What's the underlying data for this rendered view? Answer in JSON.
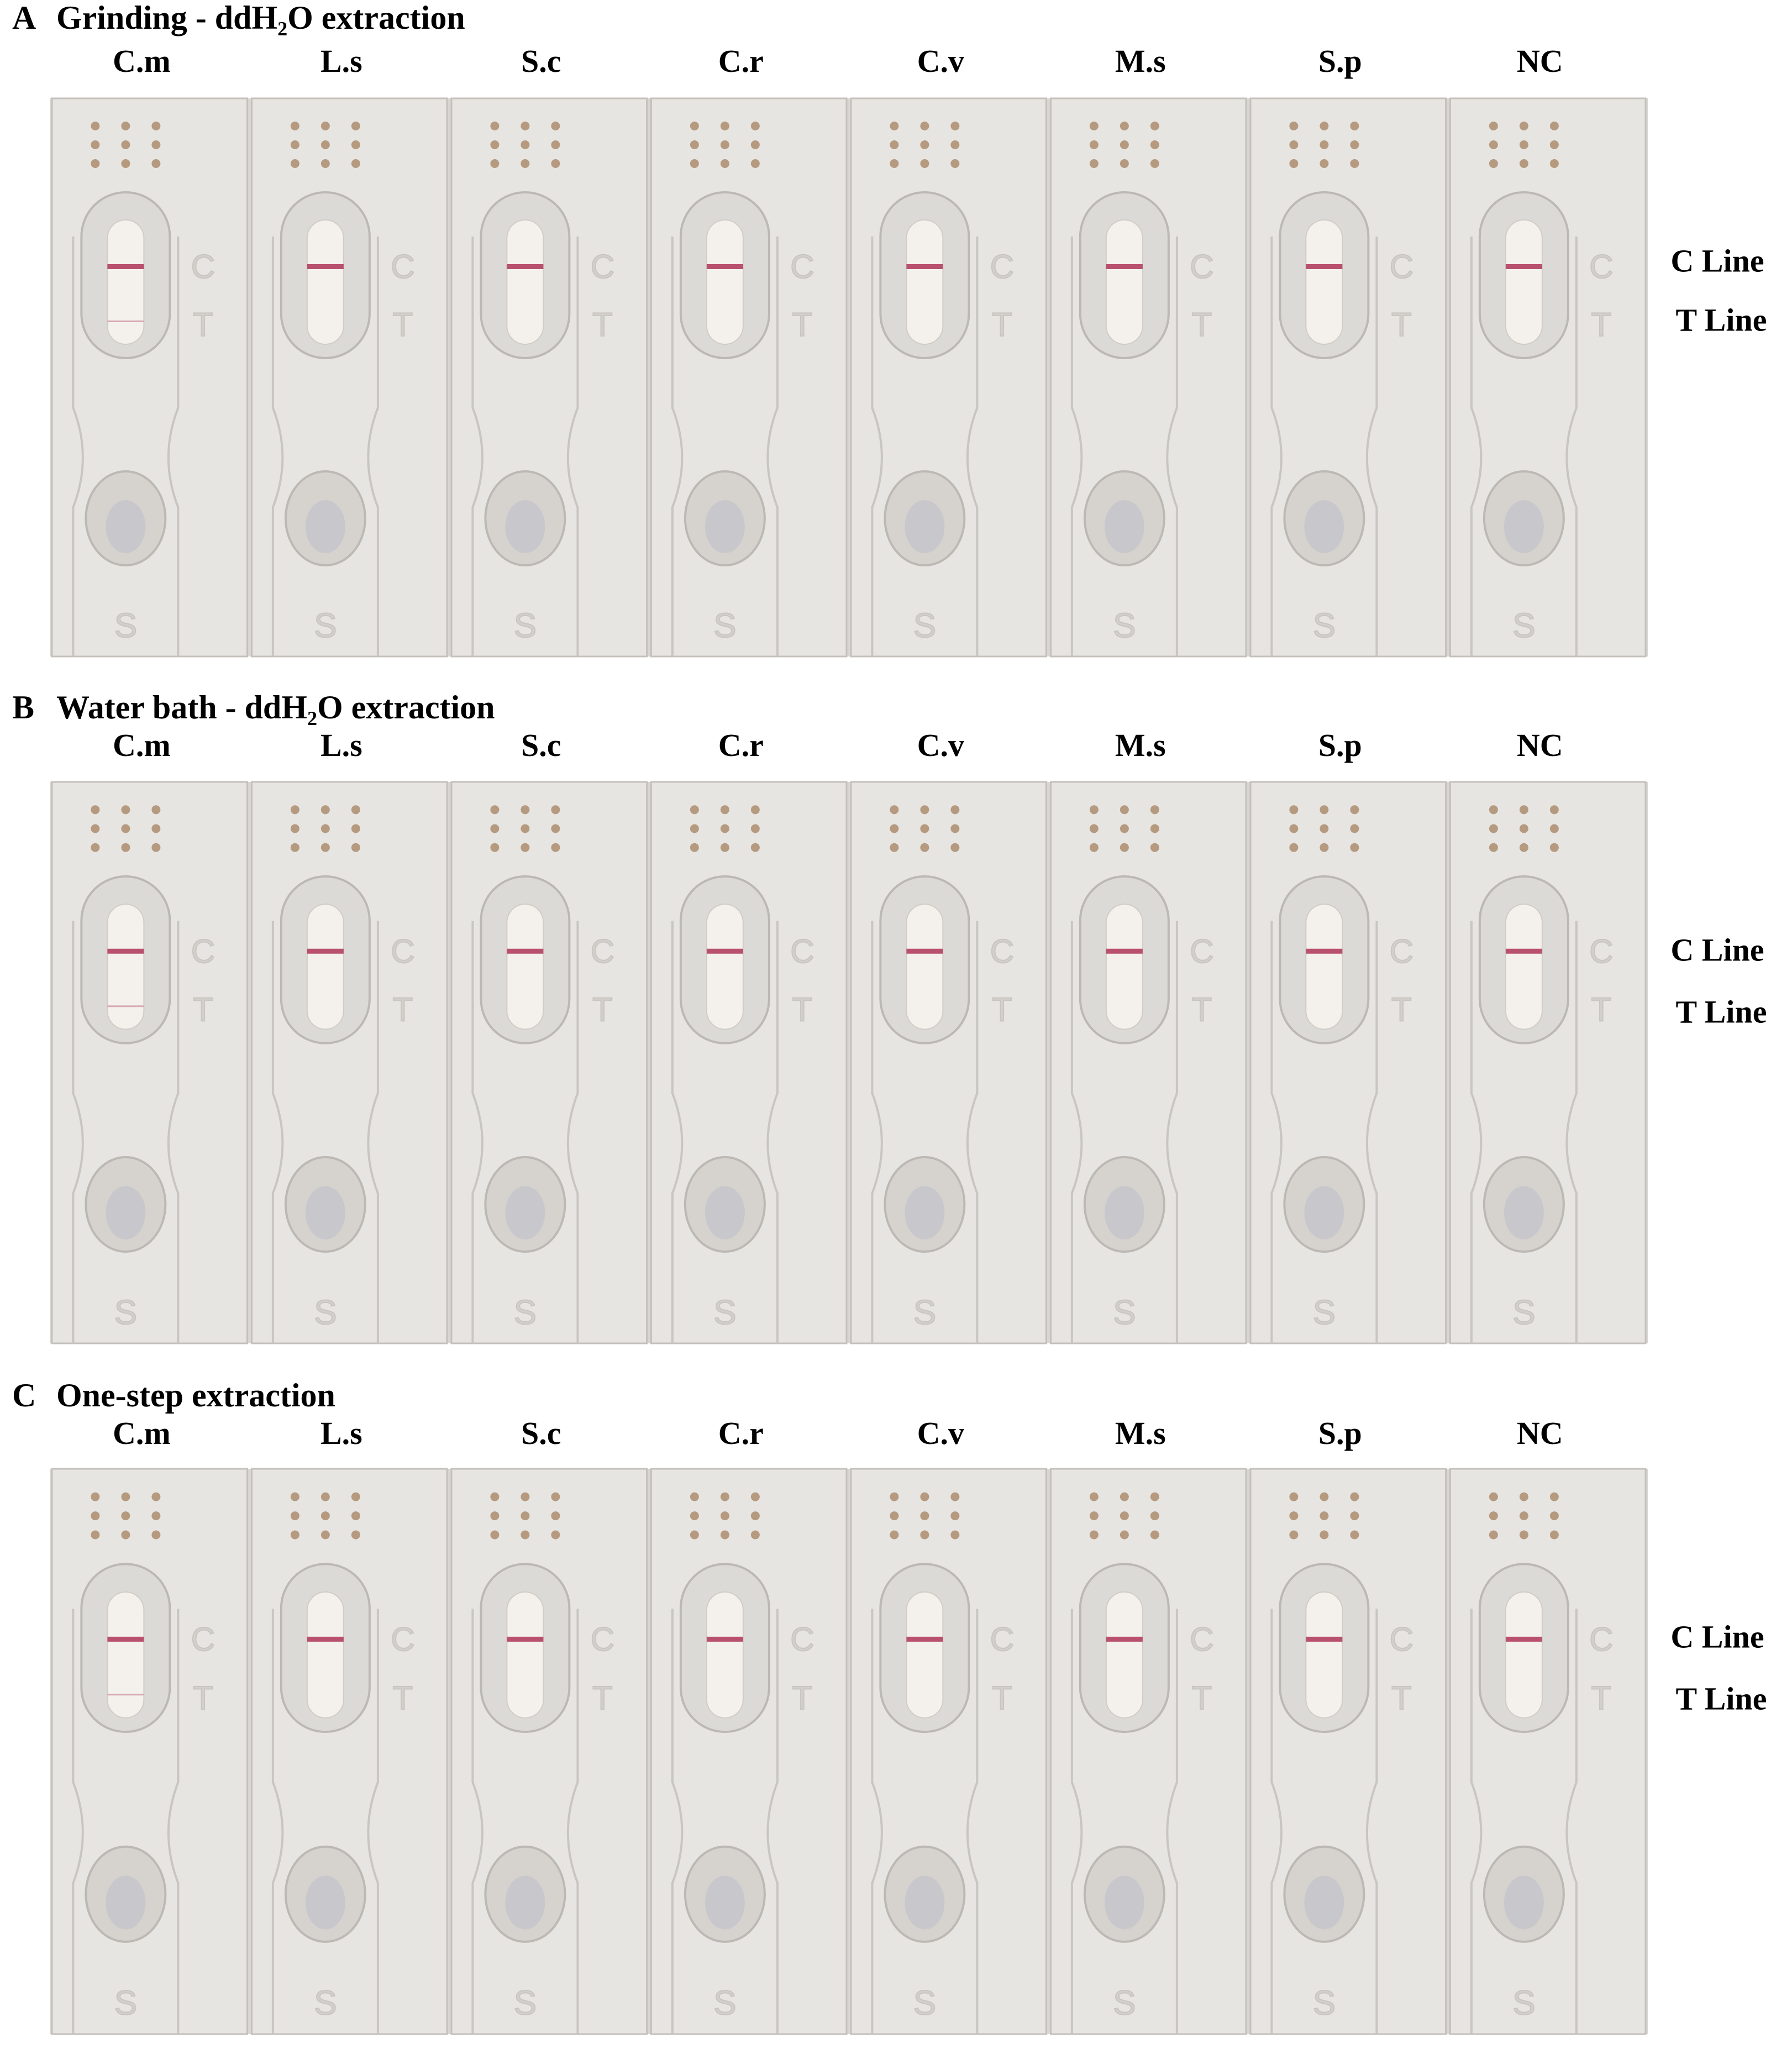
{
  "panels": [
    {
      "letter": "A",
      "title": "Grinding - ddH₂O extraction",
      "lanes": [
        "C.m",
        "L.s",
        "S.c",
        "C.r",
        "C.v",
        "M.s",
        "S.p",
        "NC"
      ],
      "c_label": "C Line",
      "t_label": "T Line"
    },
    {
      "letter": "B",
      "title": "Water bath - ddH₂O extraction",
      "lanes": [
        "C.m",
        "L.s",
        "S.c",
        "C.r",
        "C.v",
        "M.s",
        "S.p",
        "NC"
      ],
      "c_label": "C Line",
      "t_label": "T Line"
    },
    {
      "letter": "C",
      "title": "One-step extraction",
      "lanes": [
        "C.m",
        "L.s",
        "S.c",
        "C.r",
        "C.v",
        "M.s",
        "S.p",
        "NC"
      ],
      "c_label": "C Line",
      "t_label": "T Line"
    }
  ],
  "cassette_marks": {
    "c": "C",
    "t": "T",
    "s": "S"
  }
}
